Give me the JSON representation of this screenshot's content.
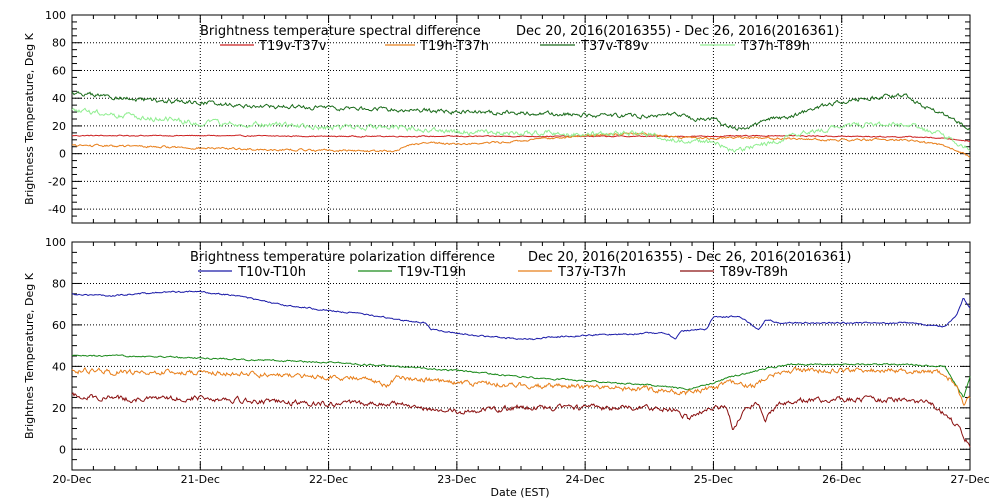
{
  "chart_data": [
    {
      "type": "line",
      "title": "Brightness temperature spectral difference",
      "date_range": "Dec 20, 2016(2016355) - Dec 26, 2016(2016361)",
      "ylabel": "Brightness Temperature, Deg K",
      "xlabel": "",
      "xlim": [
        0,
        7
      ],
      "ylim": [
        -50,
        100
      ],
      "yticks": [
        -40,
        -20,
        0,
        20,
        40,
        60,
        80,
        100
      ],
      "xticks": [
        0,
        1,
        2,
        3,
        4,
        5,
        6,
        7
      ],
      "xtick_labels": [
        "",
        "",
        "",
        "",
        "",
        "",
        "",
        ""
      ],
      "grid": true,
      "legend_placement": "top",
      "series": [
        {
          "name": "T19v-T37v",
          "color": "#cc2020",
          "noise": 0.3,
          "points": [
            [
              0,
              13
            ],
            [
              1,
              13
            ],
            [
              2,
              12.5
            ],
            [
              3,
              12.5
            ],
            [
              4,
              12.5
            ],
            [
              4.5,
              12.5
            ],
            [
              5,
              12.5
            ],
            [
              5.5,
              13
            ],
            [
              6,
              12.5
            ],
            [
              6.6,
              12
            ],
            [
              6.8,
              11
            ],
            [
              6.9,
              10
            ],
            [
              7,
              9
            ]
          ]
        },
        {
          "name": "T19h-T37h",
          "color": "#e87f1a",
          "noise": 0.6,
          "points": [
            [
              0,
              6
            ],
            [
              0.7,
              5
            ],
            [
              1,
              4
            ],
            [
              1.5,
              3
            ],
            [
              2,
              2.5
            ],
            [
              2.3,
              2
            ],
            [
              2.5,
              1.5
            ],
            [
              2.55,
              3
            ],
            [
              2.6,
              6
            ],
            [
              2.8,
              8
            ],
            [
              3,
              7
            ],
            [
              3.3,
              8
            ],
            [
              3.5,
              9
            ],
            [
              3.7,
              11
            ],
            [
              4,
              13
            ],
            [
              4.4,
              15
            ],
            [
              4.7,
              12
            ],
            [
              5,
              11
            ],
            [
              5.2,
              12
            ],
            [
              5.5,
              11
            ],
            [
              6,
              10
            ],
            [
              6.5,
              10
            ],
            [
              6.8,
              6
            ],
            [
              6.9,
              2
            ],
            [
              7,
              -2
            ]
          ]
        },
        {
          "name": "T37v-T89v",
          "color": "#1a6b1a",
          "noise": 1.2,
          "points": [
            [
              0,
              44
            ],
            [
              0.3,
              41
            ],
            [
              0.6,
              38
            ],
            [
              1,
              37
            ],
            [
              1.3,
              35
            ],
            [
              1.5,
              34
            ],
            [
              2,
              33
            ],
            [
              2.5,
              32
            ],
            [
              3,
              30
            ],
            [
              3.3,
              30
            ],
            [
              3.6,
              29
            ],
            [
              4,
              28
            ],
            [
              4.5,
              27
            ],
            [
              4.7,
              28
            ],
            [
              4.85,
              25
            ],
            [
              5,
              25
            ],
            [
              5.15,
              18
            ],
            [
              5.3,
              20
            ],
            [
              5.45,
              25
            ],
            [
              5.6,
              26
            ],
            [
              5.8,
              33
            ],
            [
              6,
              38
            ],
            [
              6.3,
              41
            ],
            [
              6.5,
              42
            ],
            [
              6.6,
              36
            ],
            [
              6.75,
              30
            ],
            [
              6.85,
              25
            ],
            [
              6.95,
              20
            ],
            [
              7,
              18
            ]
          ]
        },
        {
          "name": "T37h-T89h",
          "color": "#90ee90",
          "noise": 1.5,
          "points": [
            [
              0,
              31
            ],
            [
              0.5,
              27
            ],
            [
              0.8,
              24
            ],
            [
              1,
              22
            ],
            [
              1.5,
              21
            ],
            [
              2,
              19
            ],
            [
              2.5,
              19
            ],
            [
              2.7,
              18
            ],
            [
              3,
              16
            ],
            [
              3.5,
              15
            ],
            [
              3.8,
              15
            ],
            [
              4,
              14
            ],
            [
              4.5,
              14
            ],
            [
              4.7,
              10
            ],
            [
              5,
              8
            ],
            [
              5.15,
              2
            ],
            [
              5.3,
              5
            ],
            [
              5.45,
              8
            ],
            [
              5.7,
              15
            ],
            [
              6,
              20
            ],
            [
              6.3,
              22
            ],
            [
              6.5,
              21
            ],
            [
              6.7,
              16
            ],
            [
              6.85,
              10
            ],
            [
              6.95,
              5
            ],
            [
              7,
              3
            ]
          ]
        }
      ]
    },
    {
      "type": "line",
      "title": "Brightness temperature polarization difference",
      "date_range": "Dec 20, 2016(2016355) - Dec 26, 2016(2016361)",
      "ylabel": "Brightnes Temperature, Deg K",
      "xlabel": "Date (EST)",
      "xlim": [
        0,
        7
      ],
      "ylim": [
        -10,
        100
      ],
      "yticks": [
        0,
        20,
        40,
        60,
        80,
        100
      ],
      "xticks": [
        0,
        1,
        2,
        3,
        4,
        5,
        6,
        7
      ],
      "xtick_labels": [
        "20-Dec",
        "21-Dec",
        "22-Dec",
        "23-Dec",
        "24-Dec",
        "25-Dec",
        "26-Dec",
        "27-Dec"
      ],
      "grid": true,
      "legend_placement": "top",
      "series": [
        {
          "name": "T10v-T10h",
          "color": "#1a1aa8",
          "noise": 0.3,
          "points": [
            [
              0,
              75
            ],
            [
              0.3,
              74
            ],
            [
              0.5,
              75
            ],
            [
              0.8,
              76
            ],
            [
              1,
              76
            ],
            [
              1.3,
              74
            ],
            [
              1.6,
              70
            ],
            [
              2,
              67
            ],
            [
              2.3,
              65
            ],
            [
              2.6,
              62
            ],
            [
              2.75,
              61
            ],
            [
              2.8,
              58
            ],
            [
              3,
              56
            ],
            [
              3.3,
              54
            ],
            [
              3.6,
              53
            ],
            [
              3.7,
              54
            ],
            [
              4,
              55
            ],
            [
              4.5,
              56
            ],
            [
              4.65,
              56
            ],
            [
              4.7,
              53
            ],
            [
              4.75,
              57
            ],
            [
              4.95,
              58
            ],
            [
              5,
              64
            ],
            [
              5.2,
              64
            ],
            [
              5.35,
              58
            ],
            [
              5.4,
              62
            ],
            [
              5.45,
              62
            ],
            [
              5.5,
              61
            ],
            [
              5.8,
              61
            ],
            [
              6,
              61
            ],
            [
              6.5,
              61
            ],
            [
              6.8,
              59
            ],
            [
              6.9,
              65
            ],
            [
              6.95,
              73
            ],
            [
              7,
              68
            ]
          ]
        },
        {
          "name": "T19v-T19h",
          "color": "#1a8a1a",
          "noise": 0.3,
          "points": [
            [
              0,
              45
            ],
            [
              0.5,
              45
            ],
            [
              1,
              44
            ],
            [
              1.5,
              43
            ],
            [
              2,
              42
            ],
            [
              2.5,
              40
            ],
            [
              3,
              38
            ],
            [
              3.5,
              35
            ],
            [
              4,
              33
            ],
            [
              4.5,
              31
            ],
            [
              4.8,
              29
            ],
            [
              5,
              32
            ],
            [
              5.2,
              36
            ],
            [
              5.5,
              40
            ],
            [
              5.6,
              41
            ],
            [
              6,
              41
            ],
            [
              6.5,
              41
            ],
            [
              6.8,
              40
            ],
            [
              6.85,
              35
            ],
            [
              6.95,
              25
            ],
            [
              7,
              35
            ]
          ]
        },
        {
          "name": "T37v-T37h",
          "color": "#e87f1a",
          "noise": 1.0,
          "points": [
            [
              0,
              38
            ],
            [
              0.5,
              37
            ],
            [
              1,
              37
            ],
            [
              1.5,
              36
            ],
            [
              2,
              35
            ],
            [
              2.3,
              34
            ],
            [
              2.45,
              31
            ],
            [
              2.55,
              35
            ],
            [
              2.7,
              34
            ],
            [
              3,
              32
            ],
            [
              3.5,
              31
            ],
            [
              4,
              30
            ],
            [
              4.5,
              29
            ],
            [
              4.8,
              27
            ],
            [
              5,
              30
            ],
            [
              5.15,
              32
            ],
            [
              5.3,
              30
            ],
            [
              5.45,
              36
            ],
            [
              5.6,
              38
            ],
            [
              6,
              38
            ],
            [
              6.5,
              38
            ],
            [
              6.8,
              37
            ],
            [
              6.9,
              30
            ],
            [
              6.95,
              22
            ],
            [
              7,
              25
            ]
          ]
        },
        {
          "name": "T89v-T89h",
          "color": "#8a1010",
          "noise": 1.0,
          "points": [
            [
              0,
              26
            ],
            [
              0.5,
              24
            ],
            [
              1,
              25
            ],
            [
              1.5,
              23
            ],
            [
              2,
              22
            ],
            [
              2.5,
              22
            ],
            [
              2.75,
              20
            ],
            [
              3,
              18
            ],
            [
              3.5,
              20
            ],
            [
              4,
              20
            ],
            [
              4.5,
              20
            ],
            [
              4.7,
              19
            ],
            [
              4.8,
              15
            ],
            [
              4.9,
              18
            ],
            [
              5,
              20
            ],
            [
              5.1,
              20
            ],
            [
              5.15,
              10
            ],
            [
              5.25,
              20
            ],
            [
              5.35,
              22
            ],
            [
              5.4,
              14
            ],
            [
              5.5,
              22
            ],
            [
              5.7,
              24
            ],
            [
              6,
              24
            ],
            [
              6.5,
              24
            ],
            [
              6.7,
              22
            ],
            [
              6.8,
              17
            ],
            [
              6.9,
              12
            ],
            [
              6.95,
              6
            ],
            [
              7,
              2
            ]
          ]
        }
      ]
    }
  ]
}
